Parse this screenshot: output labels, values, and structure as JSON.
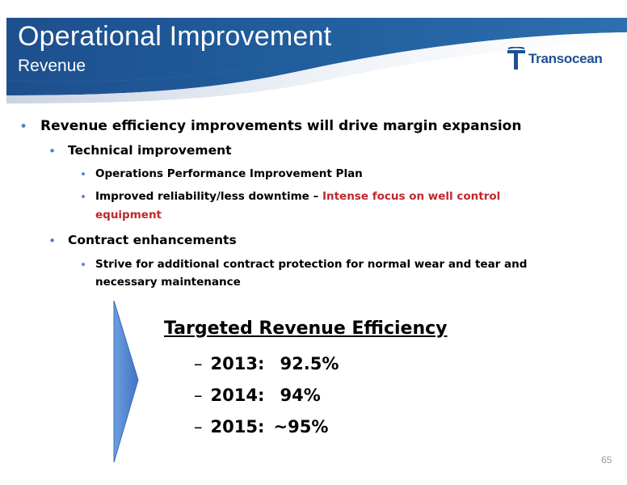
{
  "header": {
    "title": "Operational Improvement",
    "subtitle": "Revenue",
    "logo_text": "Transocean",
    "colors": {
      "band": "#1f5797",
      "band_dark": "#154580",
      "swoosh": "#dfe6ef"
    }
  },
  "bullets": {
    "main": "Revenue efficiency improvements will drive margin expansion",
    "technical": "Technical improvement",
    "ops_plan": "Operations Performance Improvement Plan",
    "reliability_prefix": "Improved reliability/less downtime – ",
    "reliability_red_1": "Intense focus on well control",
    "reliability_red_2": "equipment",
    "contract": "Contract enhancements",
    "strive_1": "Strive for additional contract protection for normal wear and tear and",
    "strive_2": "necessary maintenance"
  },
  "target": {
    "title": "Targeted Revenue Efficiency",
    "rows": [
      {
        "dash": "–",
        "year": "2013:",
        "value": "92.5%"
      },
      {
        "dash": "–",
        "year": "2014:",
        "value": "94%"
      },
      {
        "dash": "–",
        "year": "2015:",
        "value": "~95%"
      }
    ]
  },
  "page_number": "65",
  "accent_colors": {
    "bullet": "#4e7fc4",
    "red_text": "#c0282d",
    "arrow": "#5b8fd6"
  }
}
